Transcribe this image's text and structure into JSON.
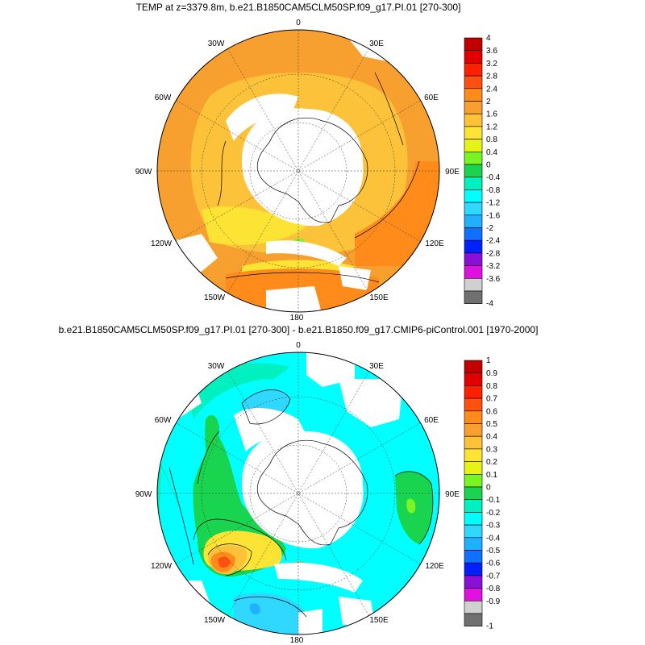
{
  "panels": [
    {
      "title": "TEMP at z=3379.8m, b.e21.B1850CAM5CLM50SP.f09_g17.PI.01 [270-300]",
      "lon_labels": {
        "top": "0",
        "top_left": "30W",
        "top_right": "30E",
        "left_upper": "60W",
        "right_upper": "60E",
        "left": "90W",
        "right": "90E",
        "left_lower": "120W",
        "right_lower": "120E",
        "bottom_left": "150W",
        "bottom_right": "150E",
        "bottom": "180"
      },
      "colorbar": {
        "labels": [
          "4",
          "3.6",
          "3.2",
          "2.8",
          "2.4",
          "2",
          "1.6",
          "1.2",
          "0.8",
          "0.4",
          "0",
          "-0.4",
          "-0.8",
          "-1.2",
          "-1.6",
          "-2",
          "-2.4",
          "-2.8",
          "-3.2",
          "-3.6",
          "-4"
        ],
        "colors": [
          "#c00000",
          "#e00000",
          "#ff2000",
          "#ff5010",
          "#ff8c1a",
          "#f7a030",
          "#fcc23a",
          "#fde434",
          "#e8f214",
          "#7af522",
          "#19d44e",
          "#00f0c0",
          "#00ffff",
          "#30d8ff",
          "#20b0ff",
          "#1070ff",
          "#0020ff",
          "#8a10d8",
          "#e010e0",
          "#d0d0d0",
          "#707070"
        ]
      }
    },
    {
      "title": "b.e21.B1850CAM5CLM50SP.f09_g17.PI.01 [270-300] - b.e21.B1850.f09_g17.CMIP6-piControl.001 [1970-2000]",
      "lon_labels": {
        "top": "0",
        "top_left": "30W",
        "top_right": "30E",
        "left_upper": "60W",
        "right_upper": "60E",
        "left": "90W",
        "right": "90E",
        "left_lower": "120W",
        "right_lower": "120E",
        "bottom_left": "150W",
        "bottom_right": "150E",
        "bottom": "180"
      },
      "colorbar": {
        "labels": [
          "1",
          "0.9",
          "0.8",
          "0.7",
          "0.6",
          "0.5",
          "0.4",
          "0.3",
          "0.2",
          "0.1",
          "0",
          "-0.1",
          "-0.2",
          "-0.3",
          "-0.4",
          "-0.5",
          "-0.6",
          "-0.7",
          "-0.8",
          "-0.9",
          "-1"
        ],
        "colors": [
          "#c00000",
          "#e00000",
          "#ff2000",
          "#ff5010",
          "#ff8c1a",
          "#f7a030",
          "#fcc23a",
          "#fde434",
          "#e8f214",
          "#7af522",
          "#19d44e",
          "#00f0c0",
          "#00ffff",
          "#30d8ff",
          "#20b0ff",
          "#1070ff",
          "#0020ff",
          "#8a10d8",
          "#e010e0",
          "#d0d0d0",
          "#707070"
        ]
      }
    }
  ]
}
